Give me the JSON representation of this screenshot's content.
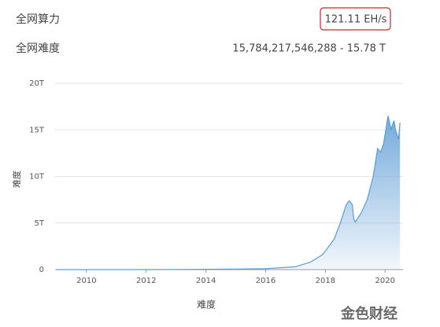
{
  "header": {
    "hashrate_label": "全网算力",
    "hashrate_value": "121.11 EH/s",
    "difficulty_label": "全网难度",
    "difficulty_value": "15,784,217,546,288 - 15.78 T"
  },
  "watermark": "金色财经",
  "chart_data": {
    "type": "area",
    "x_label": "难度",
    "y_label": "难度",
    "x": [
      2009.0,
      2011.0,
      2013.0,
      2014.0,
      2015.0,
      2016.0,
      2017.0,
      2017.5,
      2017.9,
      2018.0,
      2018.3,
      2018.5,
      2018.7,
      2018.8,
      2018.9,
      2018.95,
      2019.0,
      2019.2,
      2019.4,
      2019.6,
      2019.75,
      2019.85,
      2019.95,
      2020.05,
      2020.1,
      2020.2,
      2020.3,
      2020.35,
      2020.45,
      2020.5
    ],
    "series": [
      {
        "name": "难度",
        "color": "#5b9bd5",
        "values": [
          0,
          0.001,
          0.01,
          0.03,
          0.05,
          0.1,
          0.3,
          0.8,
          1.6,
          2.0,
          3.3,
          5.0,
          7.0,
          7.4,
          7.0,
          5.5,
          5.1,
          6.1,
          7.5,
          10.0,
          13.0,
          12.6,
          13.5,
          15.5,
          16.5,
          15.1,
          16.0,
          15.0,
          14.0,
          15.8
        ]
      }
    ],
    "xlim": [
      2008.95,
      2020.6
    ],
    "xticks": [
      2010,
      2012,
      2014,
      2016,
      2018,
      2020
    ],
    "ylim": [
      0,
      20
    ],
    "yticks": [
      0,
      {
        "value": 5,
        "label": "5T"
      },
      {
        "value": 10,
        "label": "10T"
      },
      {
        "value": 15,
        "label": "15T"
      },
      {
        "value": 20,
        "label": "20T"
      }
    ],
    "grid": true
  }
}
